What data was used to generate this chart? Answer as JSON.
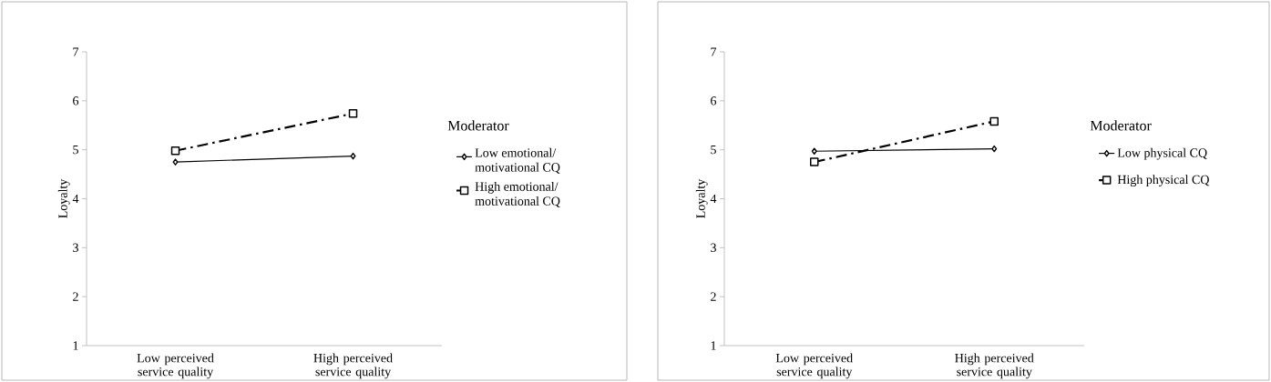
{
  "chart_data": [
    {
      "type": "line",
      "categories": [
        "Low perceived service quality",
        "High perceived service quality"
      ],
      "ylabel": "Loyalty",
      "ylim": [
        1,
        7
      ],
      "yticks": [
        1,
        2,
        3,
        4,
        5,
        6,
        7
      ],
      "legend": "right",
      "legend_title": "Moderator",
      "series": [
        {
          "name": "Low emotional/ motivational CQ",
          "color": "#000000",
          "values": [
            4.75,
            4.87
          ],
          "marker": "diamond",
          "line_style": "solid"
        },
        {
          "name": "High emotional/ motivational CQ",
          "color": "#000000",
          "values": [
            4.98,
            5.74
          ],
          "marker": "square",
          "line_style": "dashed"
        }
      ]
    },
    {
      "type": "line",
      "categories": [
        "Low perceived service quality",
        "High perceived service quality"
      ],
      "ylabel": "Loyalty",
      "ylim": [
        1,
        7
      ],
      "yticks": [
        1,
        2,
        3,
        4,
        5,
        6,
        7
      ],
      "legend": "right",
      "legend_title": "Moderator",
      "series": [
        {
          "name": "Low physical CQ",
          "color": "#000000",
          "values": [
            4.97,
            5.02
          ],
          "marker": "diamond",
          "line_style": "solid"
        },
        {
          "name": "High physical CQ",
          "color": "#000000",
          "values": [
            4.75,
            5.58
          ],
          "marker": "square",
          "line_style": "dashed"
        }
      ]
    }
  ]
}
